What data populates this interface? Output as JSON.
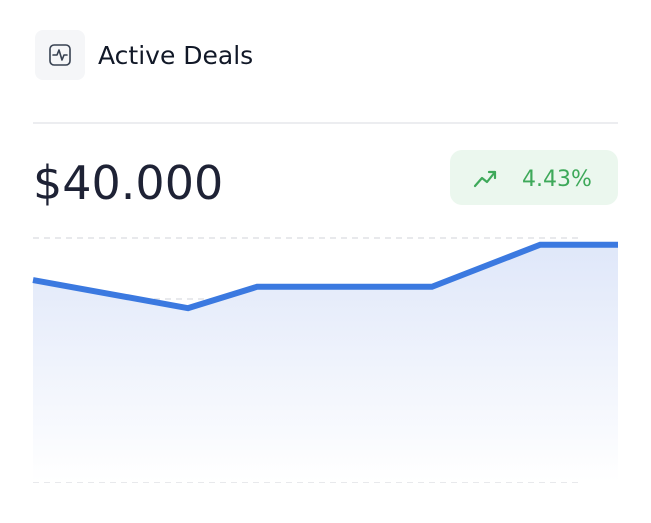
{
  "header": {
    "title": "Active Deals"
  },
  "value": "$40.000",
  "change": "4.43%",
  "chart_data": {
    "type": "area",
    "x": [
      0,
      26.5,
      38.3,
      68.2,
      86.7,
      100
    ],
    "values": [
      3.31,
      2.85,
      3.2,
      3.2,
      3.89,
      3.89
    ],
    "color": "#3b79e0",
    "xlim": [
      0,
      100
    ],
    "ylim": [
      0,
      4
    ],
    "yticks": [
      0,
      1,
      2,
      3,
      4
    ],
    "grid": true
  }
}
